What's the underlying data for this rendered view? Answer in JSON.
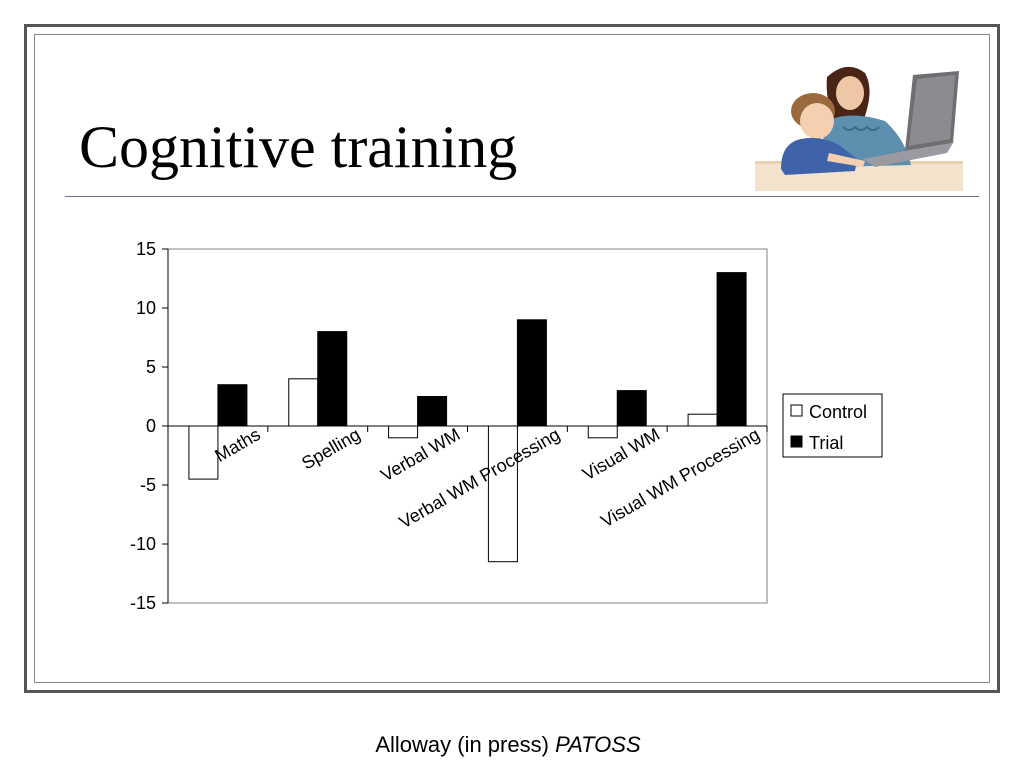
{
  "slide": {
    "title": "Cognitive training",
    "caption_text": "Alloway (in press)",
    "caption_source": "PATOSS"
  },
  "photo": {
    "subject": "woman-and-boy-with-laptop"
  },
  "chart_data": {
    "type": "bar",
    "categories": [
      "Maths",
      "Spelling",
      "Verbal WM",
      "Verbal WM Processing",
      "Visual WM",
      "Visual WM Processing"
    ],
    "series": [
      {
        "name": "Control",
        "values": [
          -4.5,
          4,
          -1,
          -11.5,
          -1,
          1
        ],
        "color": "#ffffff"
      },
      {
        "name": "Trial",
        "values": [
          3.5,
          8,
          2.5,
          9,
          3,
          13
        ],
        "color": "#000000"
      }
    ],
    "ylim": [
      -15,
      15
    ],
    "yticks": [
      15,
      10,
      5,
      0,
      -5,
      -10,
      -15
    ],
    "legend": "right",
    "grid": false
  }
}
